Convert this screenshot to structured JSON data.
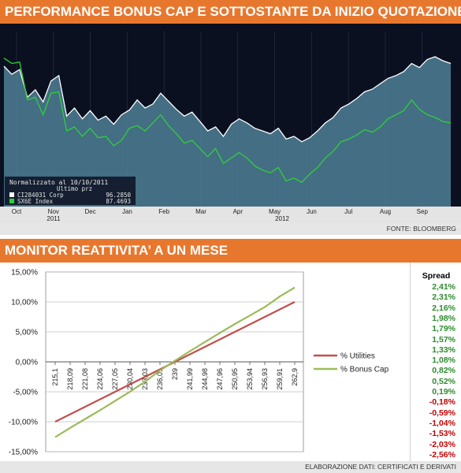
{
  "banner1": "PERFORMANCE BONUS CAP E SOTTOSTANTE DA INIZIO QUOTAZIONE",
  "source1": "FONTE: BLOOMBERG",
  "banner2": "MONITOR REATTIVITA’ A UN MESE",
  "source2": "ELABORAZIONE DATI: CERTIFICATI E DERIVATI",
  "colors": {
    "banner": "#e8772e",
    "bloomberg_bg": "#0b1020",
    "underlying_fill": "#4f7f97",
    "underlying_line": "#ffffff",
    "bonus_cap_line": "#2fd03a",
    "utilities_line": "#c0504d",
    "bonus_cap_pct_line": "#9bbb59",
    "spread_positive": "#2e8b2e",
    "spread_negative": "#c00000"
  },
  "spread": {
    "title": "Spread",
    "values": [
      "2,41%",
      "2,31%",
      "2,16%",
      "1,98%",
      "1,79%",
      "1,57%",
      "1,33%",
      "1,08%",
      "0,82%",
      "0,52%",
      "0,19%",
      "-0,18%",
      "-0,59%",
      "-1,04%",
      "-1,53%",
      "-2,03%",
      "-2,56%"
    ]
  },
  "chart_data": [
    {
      "type": "area",
      "title": "",
      "legend_header": [
        "Normalizzato al 10/10/2011",
        "Ultimo prz"
      ],
      "x_ticks": [
        "Oct",
        "Nov",
        "Dec",
        "Jan",
        "Feb",
        "Mar",
        "Apr",
        "May",
        "Jun",
        "Jul",
        "Aug",
        "Sep"
      ],
      "year_labels": [
        "2011",
        "2012"
      ],
      "series": [
        {
          "name": "CI284031 Corp",
          "last": "96.2850",
          "values": [
            95.8,
            94.6,
            95.3,
            91.2,
            92.3,
            90.5,
            93.6,
            94.4,
            88.4,
            89.6,
            88.0,
            89.2,
            87.8,
            88.4,
            87.2,
            88.6,
            89.3,
            90.8,
            89.6,
            90.2,
            91.8,
            90.6,
            89.4,
            88.4,
            89.0,
            87.6,
            86.2,
            86.8,
            85.4,
            87.2,
            88.0,
            87.4,
            86.6,
            86.2,
            85.8,
            86.6,
            85.0,
            85.4,
            84.6,
            85.2,
            86.2,
            87.4,
            88.2,
            89.6,
            90.2,
            91.0,
            92.0,
            92.4,
            93.2,
            94.0,
            94.4,
            95.0,
            96.2,
            95.6,
            96.8,
            97.2,
            96.6,
            96.2
          ]
        },
        {
          "name": "SX6E Index",
          "last": "87.4693",
          "values": [
            97.0,
            96.2,
            96.4,
            90.8,
            91.2,
            88.6,
            91.8,
            92.0,
            86.2,
            86.8,
            85.4,
            86.6,
            85.2,
            85.4,
            84.0,
            84.8,
            86.6,
            87.0,
            86.2,
            87.4,
            88.6,
            87.0,
            85.8,
            84.4,
            84.8,
            83.6,
            82.4,
            83.6,
            81.4,
            82.2,
            83.0,
            82.2,
            81.0,
            80.4,
            80.0,
            80.8,
            78.8,
            79.2,
            78.6,
            79.8,
            80.8,
            82.2,
            83.2,
            84.6,
            85.0,
            85.6,
            86.4,
            86.0,
            86.8,
            88.0,
            88.6,
            89.2,
            90.8,
            89.4,
            88.6,
            88.2,
            87.6,
            87.4
          ]
        }
      ]
    },
    {
      "type": "line",
      "title": "",
      "xlabel": "",
      "ylabel": "",
      "categories": [
        "215,1",
        "218,09",
        "221,08",
        "224,06",
        "227,05",
        "230,04",
        "233,03",
        "236,01",
        "239",
        "241,99",
        "244,98",
        "247,96",
        "250,95",
        "253,94",
        "256,93",
        "259,91",
        "262,9"
      ],
      "yticks": [
        "15,00%",
        "10,00%",
        "5,00%",
        "0,00%",
        "-5,00%",
        "-10,00%",
        "-15,00%"
      ],
      "ylim": [
        -15,
        15
      ],
      "grid": true,
      "legend_position": "right",
      "series": [
        {
          "name": "% Utilities",
          "values": [
            -10.0,
            -8.75,
            -7.5,
            -6.25,
            -5.0,
            -3.75,
            -2.5,
            -1.25,
            0.0,
            1.25,
            2.5,
            3.75,
            5.0,
            6.25,
            7.5,
            8.75,
            10.0
          ]
        },
        {
          "name": "% Bonus Cap",
          "values": [
            -12.56,
            -11.03,
            -9.54,
            -8.07,
            -6.53,
            -4.97,
            -3.31,
            -1.43,
            0.19,
            1.77,
            3.32,
            4.83,
            6.31,
            7.73,
            9.15,
            10.91,
            12.41
          ]
        }
      ]
    }
  ]
}
